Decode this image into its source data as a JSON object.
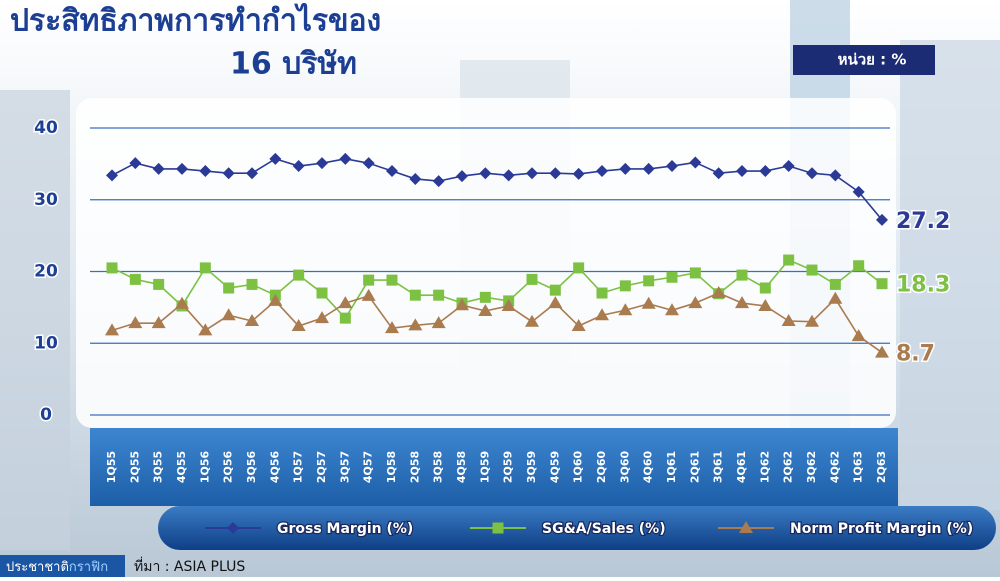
{
  "title_lines": [
    "ประสิทธิภาพการทำกำไรของ",
    "16 บริษัท"
  ],
  "unit_label": "หน่วย : %",
  "credit": [
    "ประชาชาติ",
    "กราฟิก"
  ],
  "source": "ที่มา : ASIA PLUS",
  "chart_data": {
    "type": "line",
    "categories": [
      "1Q55",
      "2Q55",
      "3Q55",
      "4Q55",
      "1Q56",
      "2Q56",
      "3Q56",
      "4Q56",
      "1Q57",
      "2Q57",
      "3Q57",
      "4Q57",
      "1Q58",
      "2Q58",
      "3Q58",
      "4Q58",
      "1Q59",
      "2Q59",
      "3Q59",
      "4Q59",
      "1Q60",
      "2Q60",
      "3Q60",
      "4Q60",
      "1Q61",
      "2Q61",
      "3Q61",
      "4Q61",
      "1Q62",
      "2Q62",
      "3Q62",
      "4Q62",
      "1Q63",
      "2Q63"
    ],
    "series": [
      {
        "name": "Gross Margin (%)",
        "color": "#2b3a96",
        "marker": "diamond",
        "values": [
          33.4,
          35.1,
          34.3,
          34.3,
          34.0,
          33.7,
          33.7,
          35.7,
          34.7,
          35.1,
          35.7,
          35.1,
          34.0,
          32.9,
          32.6,
          33.3,
          33.7,
          33.4,
          33.7,
          33.7,
          33.6,
          34.0,
          34.3,
          34.3,
          34.7,
          35.2,
          33.7,
          34.0,
          34.0,
          34.7,
          33.7,
          33.4,
          31.1,
          27.2
        ]
      },
      {
        "name": "SG&A/Sales (%)",
        "color": "#7cc142",
        "marker": "square",
        "values": [
          20.5,
          18.9,
          18.2,
          15.2,
          20.5,
          17.7,
          18.2,
          16.7,
          19.5,
          17.0,
          13.5,
          18.8,
          18.8,
          16.7,
          16.7,
          15.6,
          16.4,
          15.9,
          18.9,
          17.4,
          20.5,
          17.0,
          18.0,
          18.7,
          19.2,
          19.8,
          16.9,
          19.5,
          17.7,
          21.6,
          20.2,
          18.2,
          20.8,
          18.3
        ]
      },
      {
        "name": "Norm Profit Margin (%)",
        "color": "#a97b4f",
        "marker": "triangle",
        "values": [
          11.8,
          12.8,
          12.8,
          15.5,
          11.8,
          13.9,
          13.1,
          15.9,
          12.4,
          13.5,
          15.6,
          16.6,
          12.1,
          12.5,
          12.8,
          15.3,
          14.5,
          15.2,
          13.0,
          15.6,
          12.4,
          13.9,
          14.6,
          15.5,
          14.6,
          15.6,
          17.0,
          15.6,
          15.2,
          13.1,
          13.0,
          16.2,
          11.0,
          8.7
        ]
      }
    ],
    "ylim": [
      0,
      40
    ],
    "yticks": [
      0,
      10,
      20,
      30,
      40
    ],
    "grid": true
  }
}
